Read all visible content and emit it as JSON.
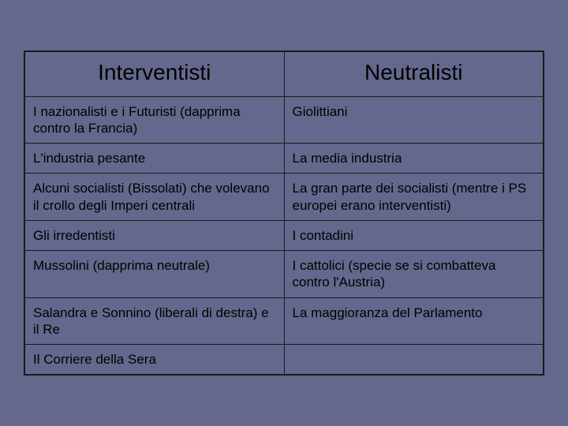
{
  "background_color": "#64688c",
  "border_color": "#1a1a1a",
  "text_color": "#000000",
  "header_fontsize": 28,
  "cell_fontsize": 17,
  "columns": [
    {
      "label": "Interventisti",
      "width_pct": 50
    },
    {
      "label": "Neutralisti",
      "width_pct": 50
    }
  ],
  "rows": [
    [
      "I nazionalisti e i Futuristi (dapprima contro la Francia)",
      "Giolittiani"
    ],
    [
      "L'industria pesante",
      "La media industria"
    ],
    [
      "Alcuni socialisti (Bissolati) che volevano il crollo degli Imperi centrali",
      "La gran parte dei socialisti (mentre i PS europei erano interventisti)"
    ],
    [
      "Gli irredentisti",
      "I contadini"
    ],
    [
      "Mussolini (dapprima neutrale)",
      "I cattolici (specie se si combatteva contro l'Austria)"
    ],
    [
      "Salandra e Sonnino (liberali di destra) e il Re",
      "La maggioranza del Parlamento"
    ],
    [
      "Il Corriere della Sera",
      ""
    ]
  ]
}
